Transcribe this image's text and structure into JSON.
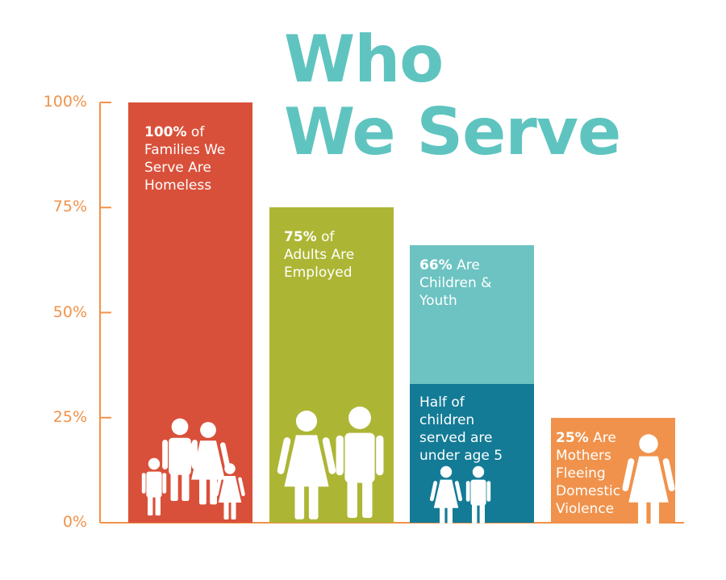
{
  "colors": {
    "title": "#5fc4c0",
    "axis": "#f0924b",
    "bar_homeless": "#d9503a",
    "bar_employed": "#adb634",
    "bar_children": "#6cc3c2",
    "bar_under5": "#137b96",
    "bar_mothers": "#f0924b",
    "figure": "#ffffff"
  },
  "title": {
    "line1": "Who",
    "line2": "We Serve"
  },
  "chart_data": {
    "type": "bar",
    "categories": [
      "Homeless families",
      "Employed adults",
      "Children & youth",
      "Mothers fleeing domestic violence"
    ],
    "values": [
      100,
      75,
      66,
      25
    ],
    "stacked_segment": {
      "category": "Children & youth",
      "value": 33,
      "label": "Half of children served are under age 5"
    },
    "ylim": [
      0,
      100
    ],
    "yticks": [
      0,
      25,
      50,
      75,
      100
    ],
    "ytick_labels": [
      "0%",
      "25%",
      "50%",
      "75%",
      "100%"
    ],
    "grid": false,
    "legend": "none",
    "bars": [
      {
        "value_text": "100%",
        "label_text": " of Families We Serve Are Homeless",
        "icon": "family-icon"
      },
      {
        "value_text": "75%",
        "label_text": " of Adults Are Employed",
        "icon": "adults-icon"
      },
      {
        "value_text": "66%",
        "label_text": " Are Children & Youth",
        "icon": "children-icon"
      },
      {
        "value_text": "25%",
        "label_text": " Are Mothers Fleeing Domestic Violence",
        "icon": "woman-icon"
      }
    ],
    "segment_label_text": "Half of children served are under age 5"
  }
}
